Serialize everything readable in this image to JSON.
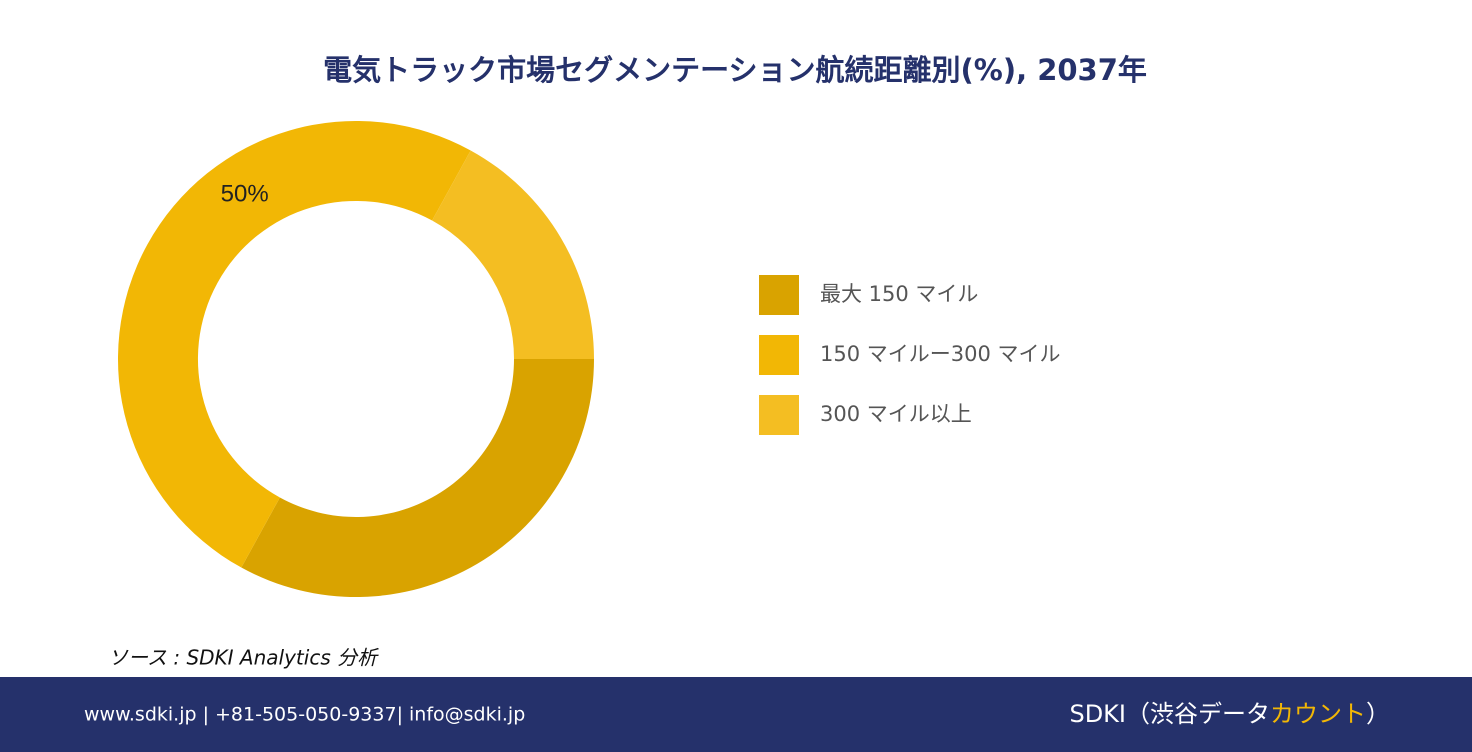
{
  "chart_data": {
    "type": "donut",
    "title": "電気トラック市場セグメンテーション航続距離別(%), 2037年",
    "categories": [
      "最大 150 マイル",
      "150 マイルー300 マイル",
      "300 マイル以上"
    ],
    "values": [
      33,
      50,
      17
    ],
    "value_labels": [
      null,
      "50%",
      null
    ],
    "colors": [
      "#d9a300",
      "#f2b705",
      "#f4be22"
    ],
    "source": "ソース : SDKI Analytics 分析"
  },
  "footer": {
    "contact": "www.sdki.jp | +81-505-050-9337| info@sdki.jp",
    "brand_prefix": "SDKI（渋谷データ",
    "brand_highlight": "カウント",
    "brand_suffix": "）"
  }
}
